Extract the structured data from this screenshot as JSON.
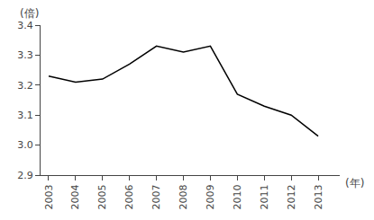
{
  "chart_data": {
    "type": "line",
    "xlabel": "(年)",
    "ylabel": "(倍)",
    "x": [
      2003,
      2004,
      2005,
      2006,
      2007,
      2008,
      2009,
      2010,
      2011,
      2012,
      2013
    ],
    "values": [
      3.23,
      3.21,
      3.22,
      3.27,
      3.33,
      3.31,
      3.33,
      3.17,
      3.13,
      3.1,
      3.03
    ],
    "color": "#000000",
    "xlim": [
      2002.7,
      2013.8
    ],
    "xticks": [
      2003,
      2004,
      2005,
      2006,
      2007,
      2008,
      2009,
      2010,
      2011,
      2012,
      2013
    ],
    "ylim": [
      2.9,
      3.4
    ],
    "yticks": [
      2.9,
      {
        "value": 3.0,
        "label": "3.0"
      },
      3.1,
      3.2,
      3.3,
      3.4
    ],
    "grid": false
  }
}
